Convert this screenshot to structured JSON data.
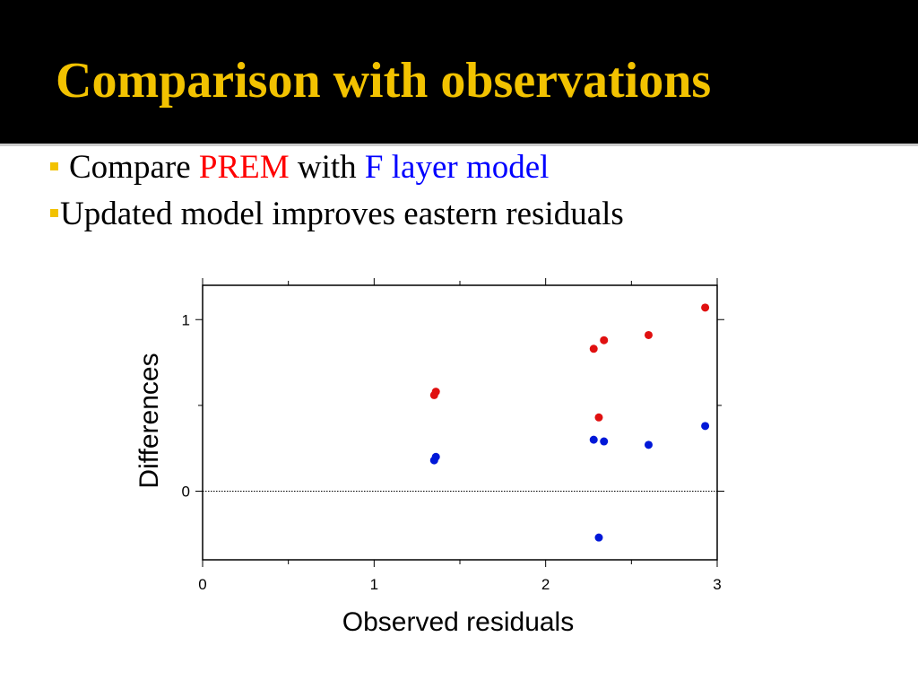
{
  "slide": {
    "title": "Comparison with observations",
    "bullets": [
      {
        "prefix": "Compare ",
        "highlight1": "PREM",
        "middle": " with ",
        "highlight2": "F layer model"
      },
      {
        "text": "Updated model improves eastern residuals"
      }
    ],
    "colors": {
      "title": "#f2c200",
      "highlight1": "#ff0000",
      "highlight2": "#0000ff",
      "marker": "#f2c200"
    }
  },
  "chart_data": {
    "type": "scatter",
    "xlabel": "Observed residuals",
    "ylabel": "Differences",
    "xlim": [
      0,
      3
    ],
    "ylim": [
      -0.4,
      1.2
    ],
    "xticks": [
      0,
      1,
      2,
      3
    ],
    "yticks": [
      0,
      1
    ],
    "reference_line": {
      "y": 0,
      "style": "dotted"
    },
    "grid": false,
    "legend": "none",
    "series": [
      {
        "color": "#e01010",
        "points": [
          {
            "x": 1.36,
            "y": 0.58
          },
          {
            "x": 1.35,
            "y": 0.56
          },
          {
            "x": 2.28,
            "y": 0.83
          },
          {
            "x": 2.34,
            "y": 0.88
          },
          {
            "x": 2.31,
            "y": 0.43
          },
          {
            "x": 2.6,
            "y": 0.91
          },
          {
            "x": 2.93,
            "y": 1.07
          }
        ]
      },
      {
        "color": "#0018d8",
        "points": [
          {
            "x": 1.36,
            "y": 0.2
          },
          {
            "x": 1.35,
            "y": 0.18
          },
          {
            "x": 2.28,
            "y": 0.3
          },
          {
            "x": 2.34,
            "y": 0.29
          },
          {
            "x": 2.31,
            "y": -0.27
          },
          {
            "x": 2.6,
            "y": 0.27
          },
          {
            "x": 2.93,
            "y": 0.38
          }
        ]
      }
    ]
  }
}
